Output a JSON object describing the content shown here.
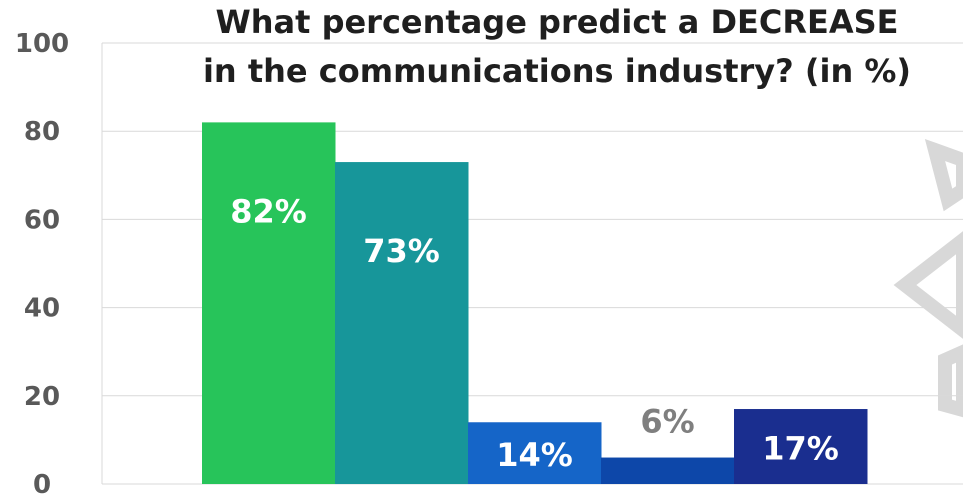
{
  "chart_data": {
    "type": "bar",
    "title": "What percentage predict a DECREASE in the communications industry? (in %)",
    "title_lines": [
      "What percentage predict a DECREASE",
      "in the communications industry? (in %)"
    ],
    "xlabel": "",
    "ylabel": "",
    "ylim": [
      0,
      100
    ],
    "yticks": [
      "100",
      "80",
      "60",
      "40",
      "20",
      "0"
    ],
    "grid": true,
    "values": [
      82,
      73,
      14,
      6,
      17
    ],
    "data_labels": [
      "82%",
      "73%",
      "14%",
      "6%",
      "17%"
    ],
    "colors": [
      "#27c45a",
      "#17969a",
      "#1565c8",
      "#0d47a9",
      "#1a2e8f"
    ],
    "label_inside": [
      true,
      true,
      true,
      false,
      true
    ],
    "label_color_inside": "#ffffff",
    "label_color_outside": "#7f7f7f",
    "watermark_color": "#d4d4d4"
  }
}
